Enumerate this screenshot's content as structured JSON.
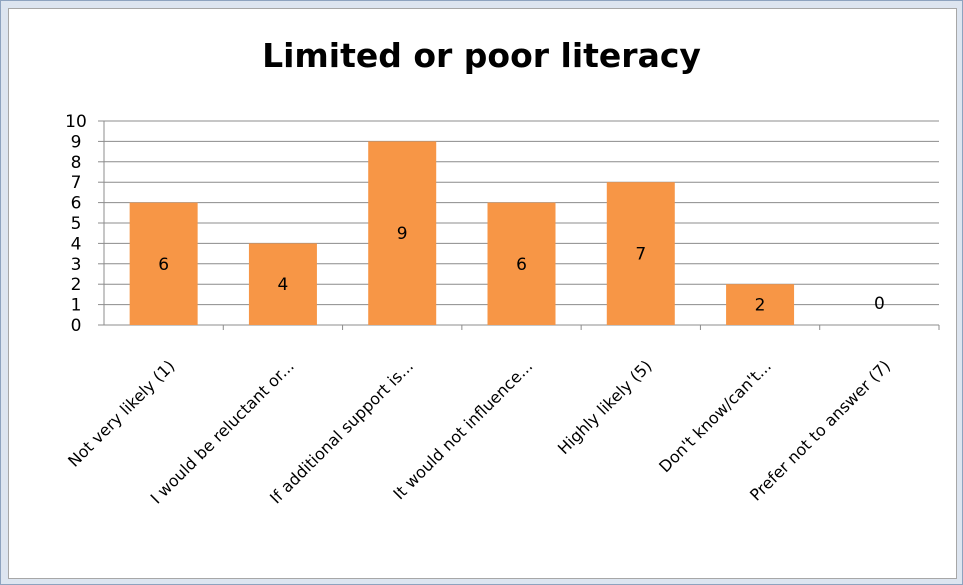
{
  "chart_data": {
    "type": "bar",
    "title": "Limited or poor literacy",
    "categories": [
      "Not very likely (1)",
      "I would be reluctant or...",
      "If additional support is...",
      "It would not influence...",
      "Highly likely (5)",
      "Don't know/can't...",
      "Prefer not to answer (7)"
    ],
    "values": [
      6,
      4,
      9,
      6,
      7,
      2,
      0
    ],
    "ylim": [
      0,
      10
    ],
    "yticks": [
      "0",
      "1",
      "2",
      "3",
      "4",
      "5",
      "6",
      "7",
      "8",
      "9",
      "10"
    ],
    "data_labels": [
      "6",
      "4",
      "9",
      "6",
      "7",
      "2",
      "0"
    ],
    "grid": true,
    "legend": "none",
    "bar_color": "#f79646",
    "xlabel": "",
    "ylabel": ""
  }
}
